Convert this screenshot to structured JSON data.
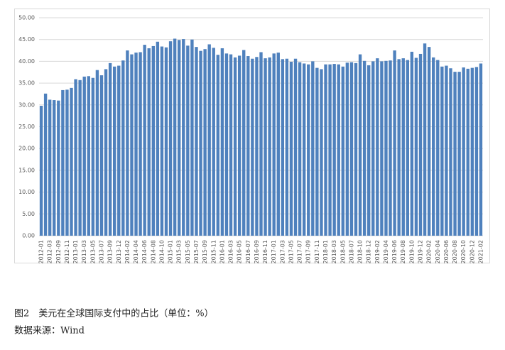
{
  "chart_data": {
    "type": "bar",
    "title": "图2　美元在全球国际支付中的占比（单位：%）",
    "source": "数据来源：Wind",
    "categories": [
      "2012-01",
      null,
      "2012-03",
      null,
      "2012-09",
      null,
      "2012-11",
      null,
      "2013-01",
      null,
      "2013-03",
      null,
      "2013-05",
      null,
      "2013-07",
      null,
      "2013-09",
      null,
      "2013-12",
      null,
      "2014-02",
      null,
      "2014-04",
      null,
      "2014-06",
      null,
      "2014-08",
      null,
      "2014-10",
      null,
      "2015-01",
      null,
      "2015-03",
      null,
      "2015-05",
      null,
      "2015-07",
      null,
      "2015-09",
      null,
      "2015-11",
      null,
      "2016-01",
      null,
      "2016-03",
      null,
      "2016-05",
      null,
      "2016-07",
      null,
      "2016-09",
      null,
      "2016-11",
      null,
      "2017-01",
      null,
      "2017-03",
      null,
      "2017-05",
      null,
      "2017-07",
      null,
      "2017-09",
      null,
      "2017-11",
      null,
      "2018-01",
      null,
      "2018-03",
      null,
      "2018-05",
      null,
      "2018-07",
      null,
      "2018-10",
      null,
      "2018-12",
      null,
      "2019-02",
      null,
      "2019-04",
      null,
      "2019-06",
      null,
      "2019-08",
      null,
      "2019-10",
      null,
      "2019-12",
      null,
      "2020-02",
      null,
      "2020-04",
      null,
      "2020-06",
      null,
      "2020-08",
      null,
      "2020-10",
      null,
      "2020-12",
      null,
      "2021-02"
    ],
    "values": [
      29.8,
      32.6,
      31.2,
      31.1,
      31.0,
      33.4,
      33.5,
      33.9,
      35.9,
      35.7,
      36.5,
      36.6,
      36.2,
      38.0,
      36.8,
      38.2,
      39.6,
      38.8,
      39.0,
      40.2,
      42.5,
      41.6,
      42.0,
      42.1,
      43.8,
      43.0,
      43.5,
      44.5,
      43.4,
      43.2,
      44.6,
      45.2,
      44.9,
      45.1,
      43.6,
      45.0,
      43.3,
      42.4,
      42.8,
      43.9,
      43.1,
      41.5,
      43.0,
      41.8,
      41.6,
      40.9,
      41.3,
      42.6,
      41.2,
      40.6,
      41.0,
      42.1,
      40.7,
      40.9,
      41.8,
      42.0,
      40.5,
      40.6,
      39.9,
      40.6,
      39.8,
      39.5,
      39.3,
      40.0,
      38.5,
      38.2,
      39.3,
      39.3,
      39.4,
      39.3,
      38.8,
      39.7,
      39.8,
      39.6,
      41.6,
      40.1,
      39.1,
      40.0,
      40.7,
      40.0,
      40.1,
      40.2,
      42.5,
      40.5,
      40.7,
      40.3,
      42.2,
      40.8,
      41.7,
      44.1,
      43.3,
      40.9,
      40.3,
      38.8,
      39.0,
      38.4,
      37.6,
      37.6,
      38.6,
      38.3,
      38.5,
      38.7,
      39.5
    ],
    "color": "#4f81bd",
    "ylim": [
      0,
      50
    ],
    "yticks": [
      {
        "value": 0,
        "label": "0.00"
      },
      {
        "value": 5,
        "label": "5.00"
      },
      {
        "value": 10,
        "label": "10.00"
      },
      {
        "value": 15,
        "label": "15.00"
      },
      {
        "value": 20,
        "label": "20.00"
      },
      {
        "value": 25,
        "label": "25.00"
      },
      {
        "value": 30,
        "label": "30.00"
      },
      {
        "value": 35,
        "label": "35.00"
      },
      {
        "value": 40,
        "label": "40.00"
      },
      {
        "value": 45,
        "label": "45.00"
      },
      {
        "value": 50,
        "label": "50.00"
      }
    ],
    "grid": true
  }
}
